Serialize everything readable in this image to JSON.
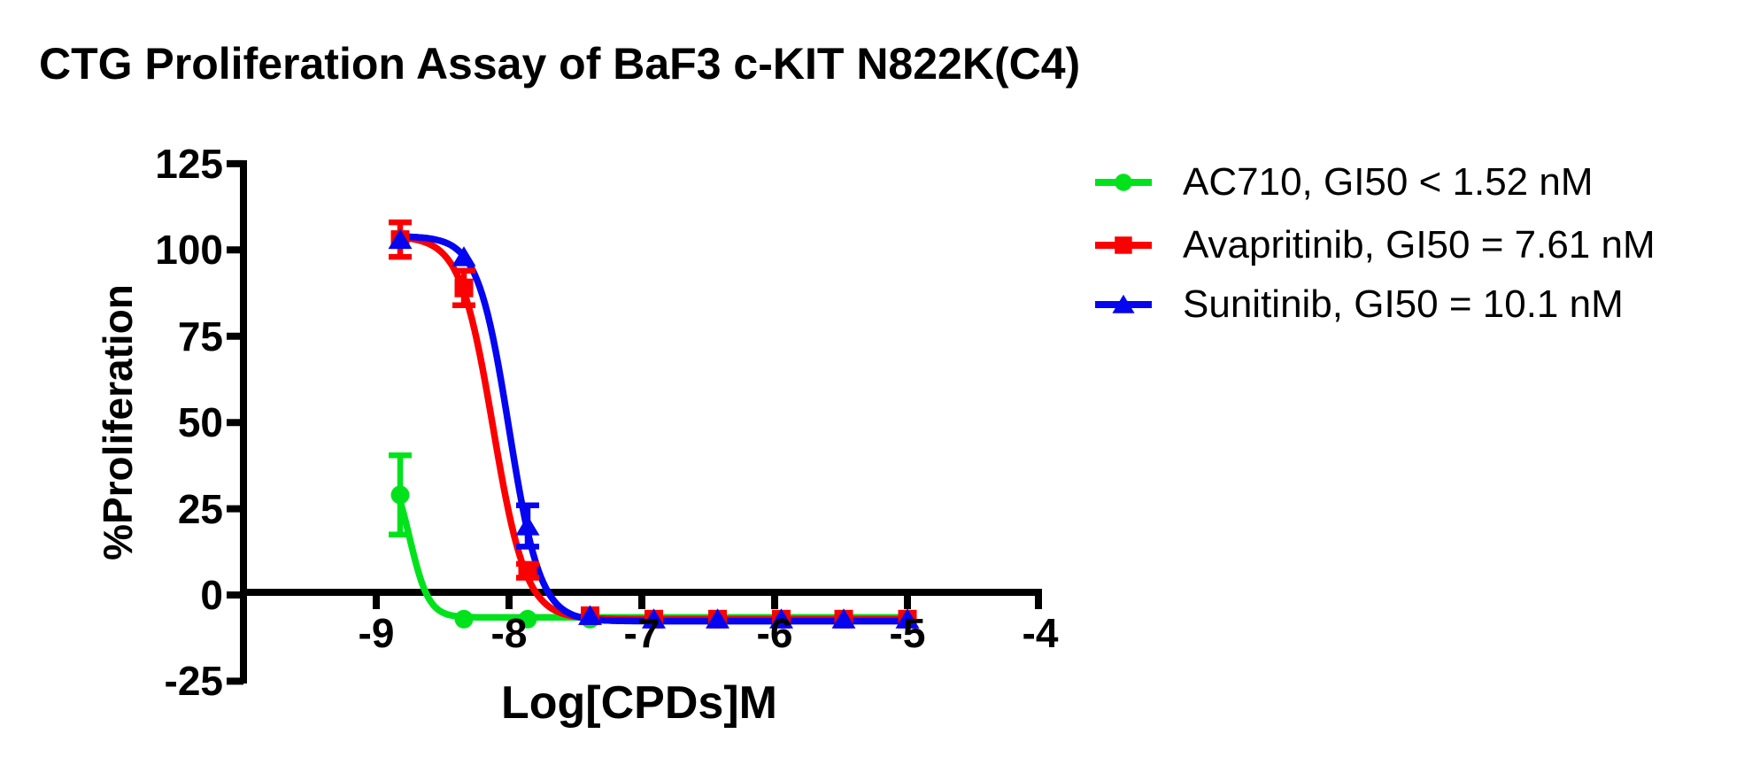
{
  "title": "CTG Proliferation Assay of BaF3 c-KIT N822K(C4)",
  "chart_data": {
    "type": "scatter",
    "title": "CTG Proliferation Assay of BaF3 c-KIT N822K(C4)",
    "xlabel": "Log[CPDs]M",
    "ylabel": "%Proliferation",
    "xlim": [
      -10,
      -4
    ],
    "ylim": [
      -25,
      125
    ],
    "grid": false,
    "legend_position": "right",
    "x_ticks": [
      -9,
      -8,
      -7,
      -6,
      -5,
      -4
    ],
    "x_tick_labels": [
      "-9",
      "-8",
      "-7",
      "-6",
      "-5",
      "-4"
    ],
    "y_ticks": [
      125,
      100,
      75,
      50,
      25,
      0,
      -25
    ],
    "y_tick_labels": [
      "125",
      "100",
      "75",
      "50",
      "25",
      "0",
      "-25"
    ],
    "x": [
      -8.82,
      -8.34,
      -7.86,
      -7.39,
      -6.91,
      -6.43,
      -5.95,
      -5.48,
      -5.0
    ],
    "series": [
      {
        "name": "AC710",
        "legend": "AC710, GI50 < 1.52 nM",
        "color": "#00E31C",
        "marker": "circle",
        "values": [
          29,
          -7,
          -7,
          -7,
          -7,
          -7,
          -7,
          -7,
          -7
        ],
        "errors": [
          11.5,
          0,
          0,
          0,
          0,
          0,
          0,
          0,
          0
        ],
        "fit": {
          "top": 40,
          "bottom": -6.5,
          "logec50": -8.75,
          "hill": 6
        }
      },
      {
        "name": "Avapritinib",
        "legend": "Avapritinib, GI50 = 7.61 nM",
        "color": "#FA0000",
        "marker": "square",
        "values": [
          103,
          89,
          7,
          -6,
          -7,
          -7,
          -7,
          -7,
          -7
        ],
        "errors": [
          5,
          5,
          2,
          0,
          0,
          0,
          0,
          0,
          0
        ],
        "fit": {
          "top": 104,
          "bottom": -7,
          "logec50": -8.12,
          "hill": 3.5
        }
      },
      {
        "name": "Sunitinib",
        "legend": "Sunitinib, GI50 = 10.1 nM",
        "color": "#0505F0",
        "marker": "triangle",
        "values": [
          103,
          98,
          20,
          -6,
          -7,
          -7,
          -7,
          -7,
          -7
        ],
        "errors": [
          0,
          0,
          6,
          0,
          0,
          0,
          0,
          0,
          0
        ],
        "fit": {
          "top": 104,
          "bottom": -7.6,
          "logec50": -8.0,
          "hill": 3.7
        }
      }
    ],
    "axis_color": "#000000"
  }
}
